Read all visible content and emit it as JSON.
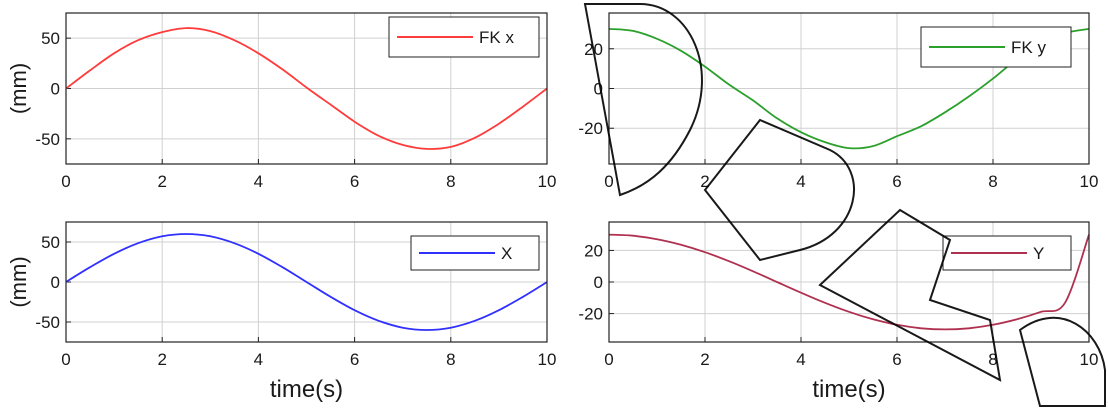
{
  "chart_data": [
    {
      "type": "line",
      "legend": "FK x",
      "legend_position": "top-right",
      "ylabel": "(mm)",
      "xlabel": "",
      "xlim": [
        0,
        10
      ],
      "ylim": [
        -75,
        75
      ],
      "xticks": [
        "0",
        "2",
        "4",
        "6",
        "8",
        "10"
      ],
      "yticks": [
        "-50",
        "0",
        "50"
      ],
      "ytick_values": [
        -50,
        0,
        50
      ],
      "grid": true,
      "color": "#ff3b3b",
      "x": [
        0,
        0.5,
        1,
        1.5,
        2,
        2.5,
        3,
        3.5,
        4,
        4.5,
        5,
        5.5,
        6,
        6.5,
        7,
        7.5,
        8,
        8.5,
        9,
        9.5,
        10
      ],
      "y": [
        0,
        18,
        35,
        48,
        56,
        60,
        57,
        48,
        35,
        19,
        1,
        -16,
        -33,
        -47,
        -56,
        -60,
        -58,
        -49,
        -35,
        -18,
        0
      ]
    },
    {
      "type": "line",
      "legend": "FK y",
      "legend_position": "top-right",
      "ylabel": "",
      "xlabel": "",
      "xlim": [
        0,
        10
      ],
      "ylim": [
        -38,
        38
      ],
      "xticks": [
        "0",
        "2",
        "4",
        "6",
        "8",
        "10"
      ],
      "yticks": [
        "-20",
        "0",
        "20"
      ],
      "ytick_values": [
        -20,
        0,
        20
      ],
      "grid": true,
      "color": "#2ca02c",
      "x": [
        0,
        0.5,
        1,
        1.5,
        2,
        2.5,
        3,
        3.5,
        4,
        4.5,
        5,
        5.5,
        6,
        6.5,
        7,
        7.5,
        8,
        8.5,
        9,
        9.5,
        10
      ],
      "y": [
        30,
        29,
        25,
        19,
        11,
        2,
        -6,
        -15,
        -22,
        -27,
        -30,
        -29,
        -24,
        -19,
        -12,
        -4,
        5,
        15,
        24,
        28,
        30
      ]
    },
    {
      "type": "line",
      "legend": "X",
      "legend_position": "top-right",
      "ylabel": "(mm)",
      "xlabel": "time(s)",
      "xlim": [
        0,
        10
      ],
      "ylim": [
        -75,
        75
      ],
      "xticks": [
        "0",
        "2",
        "4",
        "6",
        "8",
        "10"
      ],
      "yticks": [
        "-50",
        "0",
        "50"
      ],
      "ytick_values": [
        -50,
        0,
        50
      ],
      "grid": true,
      "color": "#3030ff",
      "x": [
        0,
        0.5,
        1,
        1.5,
        2,
        2.5,
        3,
        3.5,
        4,
        4.5,
        5,
        5.5,
        6,
        6.5,
        7,
        7.5,
        8,
        8.5,
        9,
        9.5,
        10
      ],
      "y": [
        0,
        18.5,
        35.3,
        48.5,
        57.1,
        60,
        57.1,
        48.5,
        35.3,
        18.5,
        0,
        -18.5,
        -35.3,
        -48.5,
        -57.1,
        -60,
        -57.1,
        -48.5,
        -35.3,
        -18.5,
        0
      ]
    },
    {
      "type": "line",
      "legend": "Y",
      "legend_position": "top-right",
      "ylabel": "",
      "xlabel": "time(s)",
      "xlim": [
        0,
        10
      ],
      "ylim": [
        -38,
        38
      ],
      "xticks": [
        "0",
        "2",
        "4",
        "6",
        "8",
        "10"
      ],
      "yticks": [
        "-20",
        "0",
        "20"
      ],
      "ytick_values": [
        -20,
        0,
        20
      ],
      "grid": true,
      "color": "#b03050",
      "x": [
        0,
        0.5,
        1,
        1.5,
        2,
        2.5,
        3,
        3.5,
        4,
        4.5,
        5,
        5.5,
        6,
        6.5,
        7,
        7.5,
        8,
        8.5,
        9,
        9.5,
        10
      ],
      "y": [
        30,
        29.3,
        27.1,
        23.6,
        18.9,
        13.2,
        6.8,
        0,
        -6.8,
        -13.2,
        -18.9,
        -23.6,
        -27.1,
        -29.3,
        -30,
        -29.3,
        -27.1,
        -23.6,
        -18.9,
        -13.2,
        30
      ]
    }
  ]
}
